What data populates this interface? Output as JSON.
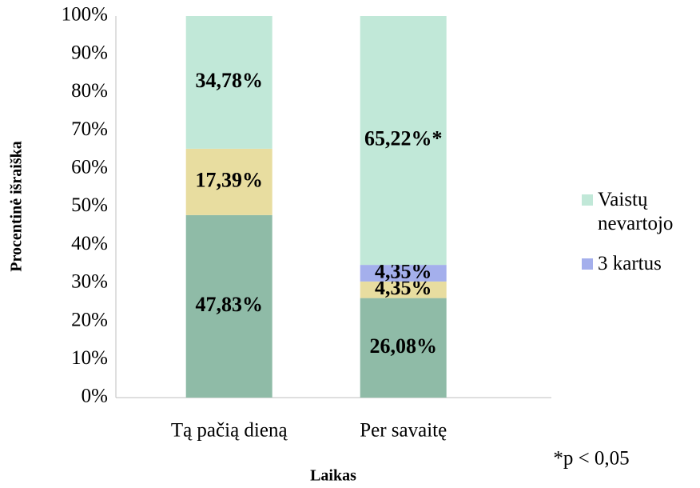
{
  "chart_data": {
    "type": "stacked_bar",
    "categories": [
      "Tą pačią dieną",
      "Per savaitę"
    ],
    "series": [
      {
        "color": "#8fbba7",
        "values": [
          47.83,
          26.08
        ],
        "value_labels": [
          "47,83%",
          "26,08%"
        ]
      },
      {
        "color": "#e8dda0",
        "values": [
          17.39,
          4.35
        ],
        "value_labels": [
          "17,39%",
          "4,35%"
        ]
      },
      {
        "name": "3 kartus",
        "color": "#a4afec",
        "values": [
          0,
          4.35
        ],
        "value_labels": [
          null,
          "4,35%"
        ]
      },
      {
        "name": "Vaistų nevartojo",
        "color": "#c1e8d8",
        "values": [
          34.78,
          65.22
        ],
        "value_labels": [
          "34,78%",
          "65,22%*"
        ]
      }
    ],
    "ylim": [
      0,
      100
    ],
    "yticks": [
      {
        "value": 0,
        "label": "0%"
      },
      {
        "value": 10,
        "label": "10%"
      },
      {
        "value": 20,
        "label": "20%"
      },
      {
        "value": 30,
        "label": "30%"
      },
      {
        "value": 40,
        "label": "40%"
      },
      {
        "value": 50,
        "label": "50%"
      },
      {
        "value": 60,
        "label": "60%"
      },
      {
        "value": 70,
        "label": "70%"
      },
      {
        "value": 80,
        "label": "80%"
      },
      {
        "value": 90,
        "label": "90%"
      },
      {
        "value": 100,
        "label": "100%"
      }
    ],
    "y_label": "Procentinė išraiška",
    "x_label": "Laikas",
    "annotation": "*p < 0,05",
    "grid": false,
    "legend": "right"
  }
}
